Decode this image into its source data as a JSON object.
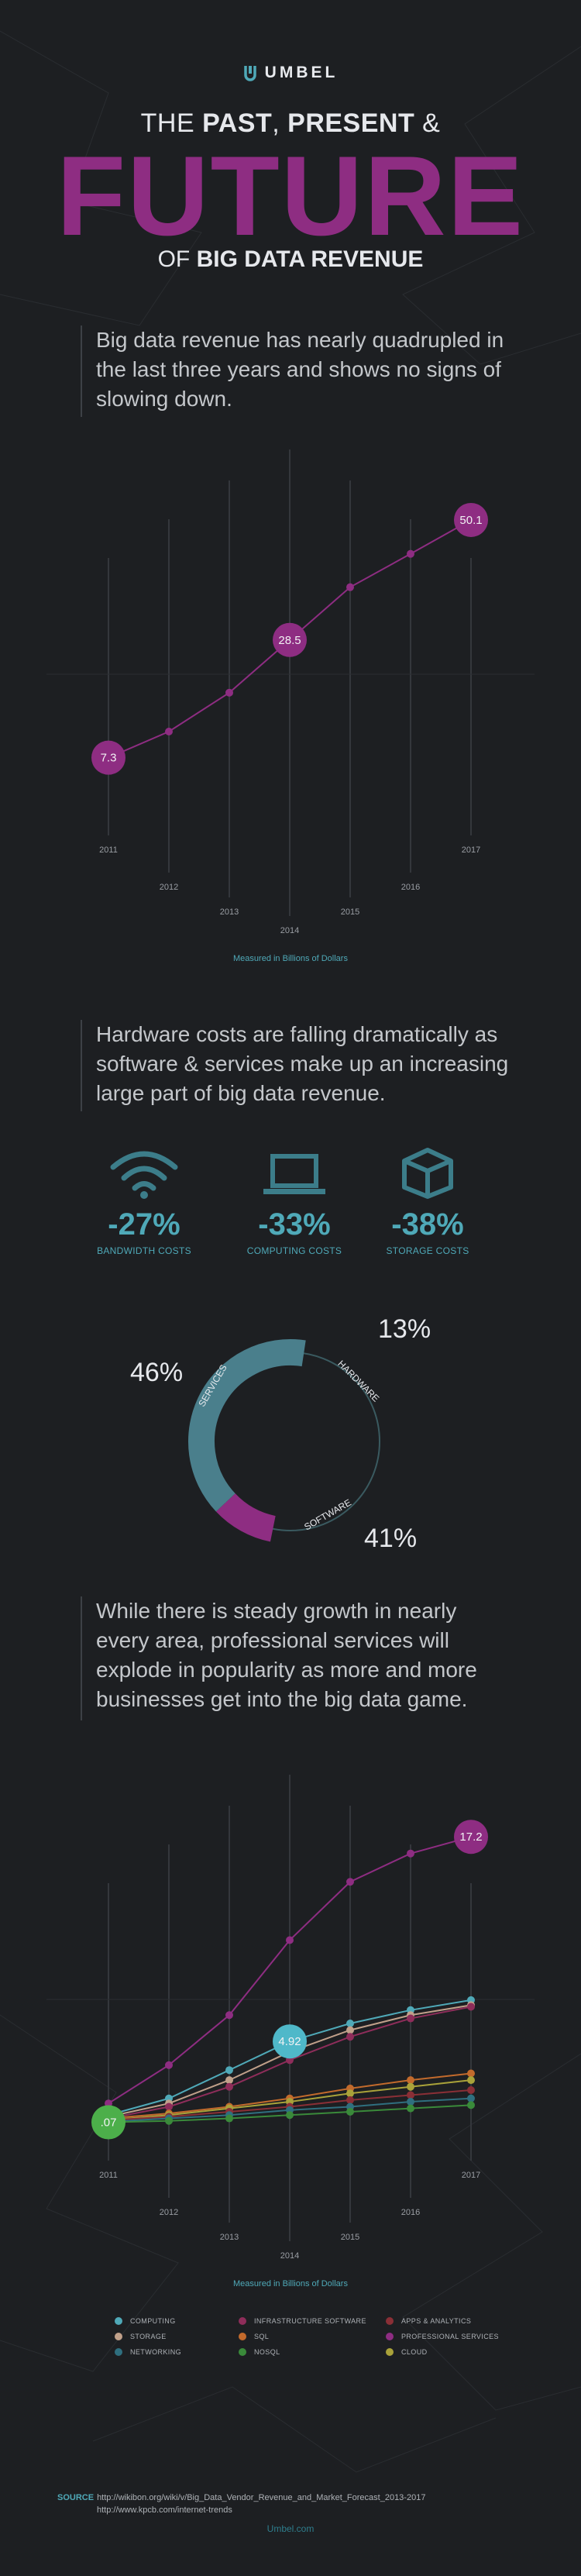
{
  "brand": {
    "name": "UMBEL"
  },
  "header": {
    "line1_pre": "THE ",
    "line1_b1": "PAST",
    "line1_mid": ", ",
    "line1_b2": "PRESENT",
    "line1_post": " &",
    "big": "FUTURE",
    "line3_pre": "OF ",
    "line3_b": "BIG DATA REVENUE"
  },
  "section1": {
    "intro": "Big data revenue has nearly quadrupled in the last three years and shows no signs of slowing down.",
    "caption": "Measured in Billions of Dollars"
  },
  "section2": {
    "intro": "Hardware costs are falling dramatically as software & services make up an increasing large part of big data revenue.",
    "stats": [
      {
        "icon": "wifi-icon",
        "value": "-27%",
        "label": "BANDWIDTH COSTS"
      },
      {
        "icon": "laptop-icon",
        "value": "-33%",
        "label": "COMPUTING COSTS"
      },
      {
        "icon": "box-icon",
        "value": "-38%",
        "label": "STORAGE COSTS"
      }
    ],
    "donut": {
      "services_pct": "46%",
      "hardware_pct": "13%",
      "software_pct": "41%",
      "services_label": "SERVICES",
      "hardware_label": "HARDWARE",
      "software_label": "SOFTWARE"
    }
  },
  "section3": {
    "intro": "While there is steady growth in nearly every area, professional services will explode in popularity as more and more businesses get into the big data game.",
    "caption": "Measured in Billions of Dollars",
    "legend": [
      {
        "label": "COMPUTING",
        "color": "#4fa9b8"
      },
      {
        "label": "INFRASTRUCTURE SOFTWARE",
        "color": "#8e2d5a"
      },
      {
        "label": "APPS & ANALYTICS",
        "color": "#8a2f36"
      },
      {
        "label": "STORAGE",
        "color": "#c0a08a"
      },
      {
        "label": "SQL",
        "color": "#c26a2c"
      },
      {
        "label": "PROFESSIONAL SERVICES",
        "color": "#8e2d82"
      },
      {
        "label": "NETWORKING",
        "color": "#2f6f7f"
      },
      {
        "label": "NOSQL",
        "color": "#3a8a3a"
      },
      {
        "label": "CLOUD",
        "color": "#a9a23a"
      }
    ]
  },
  "chart_data": [
    {
      "type": "line",
      "title": "",
      "xlabel": "Measured in Billions of Dollars",
      "ylabel": "",
      "x": [
        "2011",
        "2012",
        "2013",
        "2014",
        "2015",
        "2016",
        "2017"
      ],
      "series": [
        {
          "values": [
            7.3,
            12,
            19,
            28.5,
            38,
            44,
            50.1
          ]
        }
      ],
      "labels_shown": [
        "7.3",
        "28.5",
        "50.1"
      ],
      "color": "#8e2d82"
    },
    {
      "type": "pie",
      "title": "",
      "categories": [
        "SERVICES",
        "HARDWARE",
        "SOFTWARE"
      ],
      "values": [
        46,
        13,
        41
      ],
      "colors": [
        "#3a5a60",
        "#8e2d82",
        "#4a7f8c"
      ]
    },
    {
      "type": "line",
      "title": "",
      "xlabel": "Measured in Billions of Dollars",
      "x": [
        "2011",
        "2012",
        "2013",
        "2014",
        "2015",
        "2016",
        "2017"
      ],
      "series": [
        {
          "name": "PROFESSIONAL SERVICES",
          "values": [
            1.2,
            3.5,
            6.5,
            11,
            14.5,
            16.2,
            17.2
          ]
        },
        {
          "name": "COMPUTING",
          "values": [
            0.5,
            1.5,
            3.2,
            4.92,
            6.0,
            6.8,
            7.4
          ]
        },
        {
          "name": "STORAGE",
          "values": [
            0.4,
            1.2,
            2.6,
            4.3,
            5.6,
            6.5,
            7.1
          ]
        },
        {
          "name": "INFRASTRUCTURE SOFTWARE",
          "values": [
            0.3,
            1.0,
            2.2,
            3.8,
            5.2,
            6.3,
            7.0
          ]
        },
        {
          "name": "SQL",
          "values": [
            0.3,
            0.6,
            1.0,
            1.5,
            2.1,
            2.6,
            3.0
          ]
        },
        {
          "name": "CLOUD",
          "values": [
            0.2,
            0.5,
            0.9,
            1.3,
            1.8,
            2.2,
            2.6
          ]
        },
        {
          "name": "APPS & ANALYTICS",
          "values": [
            0.2,
            0.4,
            0.7,
            1.0,
            1.4,
            1.7,
            2.0
          ]
        },
        {
          "name": "NETWORKING",
          "values": [
            0.1,
            0.3,
            0.5,
            0.8,
            1.0,
            1.3,
            1.5
          ]
        },
        {
          "name": "NOSQL",
          "values": [
            0.07,
            0.15,
            0.3,
            0.5,
            0.7,
            0.9,
            1.1
          ]
        }
      ],
      "labels_shown": [
        ".07",
        "4.92",
        "17.2"
      ]
    }
  ],
  "footer": {
    "source_label": "SOURCE",
    "source_url1": "http://wikibon.org/wiki/v/Big_Data_Vendor_Revenue_and_Market_Forecast_2013-2017",
    "source_url2": "http://www.kpcb.com/internet-trends",
    "site": "Umbel.com"
  }
}
